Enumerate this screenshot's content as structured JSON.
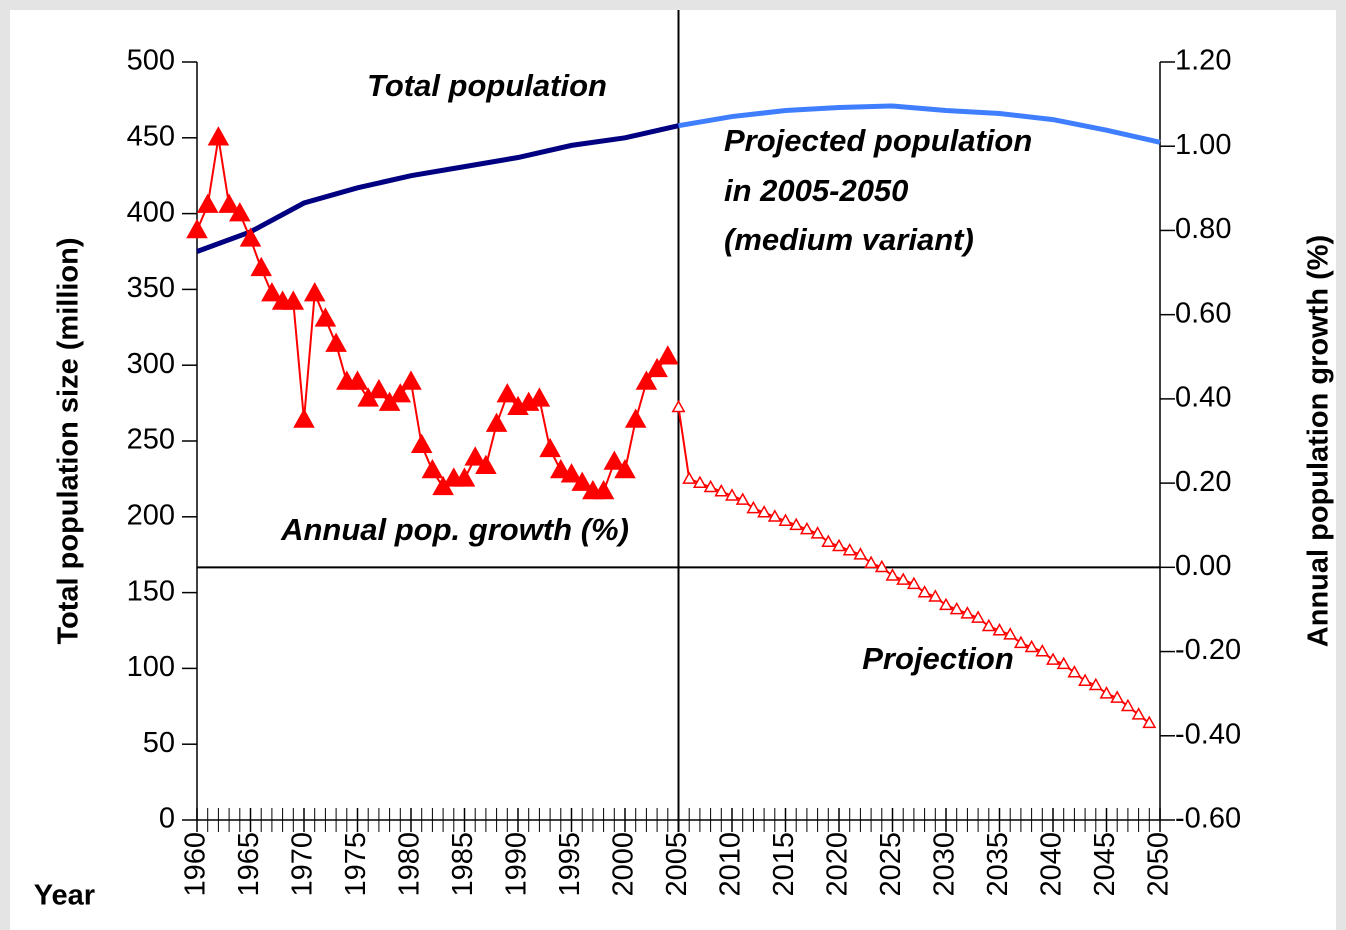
{
  "chart_data": {
    "type": "line",
    "xlabel": "Year",
    "ylabel": "Total population size (million)",
    "y2label": "Annual population growth (%)",
    "annotations": [
      "Total population",
      "Projected population",
      "in 2005-2050",
      "(medium variant)",
      "Annual pop. growth (%)",
      "Projection"
    ],
    "xlim": [
      1960,
      2050
    ],
    "xticks": [
      1960,
      1965,
      1970,
      1975,
      1980,
      1985,
      1990,
      1995,
      2000,
      2005,
      2010,
      2015,
      2020,
      2025,
      2030,
      2035,
      2040,
      2045,
      2050
    ],
    "ylim": [
      0,
      500
    ],
    "yticks": [
      0,
      50,
      100,
      150,
      200,
      250,
      300,
      350,
      400,
      450,
      500
    ],
    "y2lim": [
      -0.6,
      1.2
    ],
    "y2ticks": [
      {
        "value": -0.6,
        "label": "-0.60"
      },
      {
        "value": -0.4,
        "label": "-0.40"
      },
      {
        "value": -0.2,
        "label": "-0.20"
      },
      {
        "value": 0,
        "label": "0.00"
      },
      {
        "value": 0.2,
        "label": "0.20"
      },
      {
        "value": 0.4,
        "label": "0.40"
      },
      {
        "value": 0.6,
        "label": "0.60"
      },
      {
        "value": 0.8,
        "label": "0.80"
      },
      {
        "value": 1.0,
        "label": "1.00"
      },
      {
        "value": 1.2,
        "label": "1.20"
      }
    ],
    "vline_x": 2005,
    "series": [
      {
        "color": "#000080",
        "axis": "y",
        "marker": "none",
        "x": [
          1960,
          1965,
          1970,
          1975,
          1980,
          1985,
          1990,
          1995,
          2000,
          2005
        ],
        "values": [
          375,
          388,
          407,
          417,
          425,
          431,
          437,
          445,
          450,
          458
        ]
      },
      {
        "color": "#3f7fff",
        "axis": "y",
        "marker": "none",
        "x": [
          2005,
          2010,
          2015,
          2020,
          2025,
          2030,
          2035,
          2040,
          2045,
          2050
        ],
        "values": [
          458,
          464,
          468,
          470,
          471,
          468,
          466,
          462,
          455,
          447
        ]
      },
      {
        "color": "#ff0000",
        "axis": "y2",
        "marker": "filled",
        "x": [
          1960,
          1961,
          1962,
          1963,
          1964,
          1965,
          1966,
          1967,
          1968,
          1969,
          1970,
          1971,
          1972,
          1973,
          1974,
          1975,
          1976,
          1977,
          1978,
          1979,
          1980,
          1981,
          1982,
          1983,
          1984,
          1985,
          1986,
          1987,
          1988,
          1989,
          1990,
          1991,
          1992,
          1993,
          1994,
          1995,
          1996,
          1997,
          1998,
          1999,
          2000,
          2001,
          2002,
          2003,
          2004
        ],
        "values": [
          0.8,
          0.86,
          1.02,
          0.86,
          0.84,
          0.78,
          0.71,
          0.65,
          0.63,
          0.63,
          0.35,
          0.65,
          0.59,
          0.53,
          0.44,
          0.44,
          0.4,
          0.42,
          0.39,
          0.41,
          0.44,
          0.29,
          0.23,
          0.19,
          0.21,
          0.21,
          0.26,
          0.24,
          0.34,
          0.41,
          0.38,
          0.39,
          0.4,
          0.28,
          0.23,
          0.22,
          0.2,
          0.18,
          0.18,
          0.25,
          0.23,
          0.35,
          0.44,
          0.47,
          0.5
        ]
      },
      {
        "color": "#ff0000",
        "axis": "y2",
        "marker": "hollow",
        "x": [
          2005,
          2006,
          2007,
          2008,
          2009,
          2010,
          2011,
          2012,
          2013,
          2014,
          2015,
          2016,
          2017,
          2018,
          2019,
          2020,
          2021,
          2022,
          2023,
          2024,
          2025,
          2026,
          2027,
          2028,
          2029,
          2030,
          2031,
          2032,
          2033,
          2034,
          2035,
          2036,
          2037,
          2038,
          2039,
          2040,
          2041,
          2042,
          2043,
          2044,
          2045,
          2046,
          2047,
          2048,
          2049
        ],
        "values": [
          0.38,
          0.21,
          0.2,
          0.19,
          0.18,
          0.17,
          0.16,
          0.14,
          0.13,
          0.12,
          0.11,
          0.1,
          0.09,
          0.08,
          0.06,
          0.05,
          0.04,
          0.03,
          0.01,
          0.0,
          -0.02,
          -0.03,
          -0.04,
          -0.06,
          -0.07,
          -0.09,
          -0.1,
          -0.11,
          -0.12,
          -0.14,
          -0.15,
          -0.16,
          -0.18,
          -0.19,
          -0.2,
          -0.22,
          -0.23,
          -0.25,
          -0.27,
          -0.28,
          -0.3,
          -0.31,
          -0.33,
          -0.35,
          -0.37
        ]
      }
    ]
  }
}
